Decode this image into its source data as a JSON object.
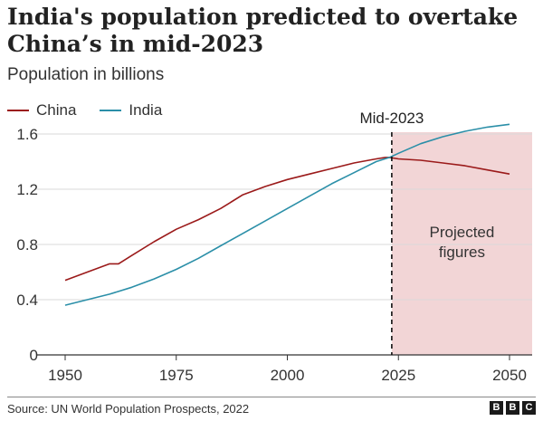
{
  "title": "India's population predicted to overtake China’s in mid-2023",
  "subtitle": "Population in billions",
  "source": "Source: UN World Population Prospects, 2022",
  "logo_letters": [
    "B",
    "B",
    "C"
  ],
  "colors": {
    "china": "#9b1a1a",
    "india": "#2b8fa8",
    "projection_bg": "#f2d5d6",
    "grid": "#d9d9d9"
  },
  "chart_data": {
    "type": "line",
    "xlim": [
      1950,
      2050
    ],
    "ylim": [
      0,
      1.6
    ],
    "x_ticks": [
      1950,
      1975,
      2000,
      2025,
      2050
    ],
    "y_ticks": [
      0,
      0.4,
      0.8,
      1.2,
      1.6
    ],
    "y_tick_labels": [
      "0",
      "0.4",
      "0.8",
      "1.2",
      "1.6"
    ],
    "grid": true,
    "legend_position": "top-left",
    "series": [
      {
        "name": "China",
        "color": "#9b1a1a",
        "x": [
          1950,
          1955,
          1960,
          1962,
          1965,
          1970,
          1975,
          1980,
          1985,
          1990,
          1995,
          2000,
          2005,
          2010,
          2015,
          2020,
          2022,
          2023,
          2025,
          2030,
          2035,
          2040,
          2045,
          2050
        ],
        "values": [
          0.54,
          0.6,
          0.66,
          0.66,
          0.72,
          0.82,
          0.91,
          0.98,
          1.06,
          1.16,
          1.22,
          1.27,
          1.31,
          1.35,
          1.39,
          1.42,
          1.43,
          1.43,
          1.42,
          1.41,
          1.39,
          1.37,
          1.34,
          1.31
        ]
      },
      {
        "name": "India",
        "color": "#2b8fa8",
        "x": [
          1950,
          1955,
          1960,
          1965,
          1970,
          1975,
          1980,
          1985,
          1990,
          1995,
          2000,
          2005,
          2010,
          2015,
          2020,
          2023,
          2025,
          2030,
          2035,
          2040,
          2045,
          2050
        ],
        "values": [
          0.36,
          0.4,
          0.44,
          0.49,
          0.55,
          0.62,
          0.7,
          0.79,
          0.88,
          0.97,
          1.06,
          1.15,
          1.24,
          1.32,
          1.4,
          1.43,
          1.46,
          1.53,
          1.58,
          1.62,
          1.65,
          1.67
        ]
      }
    ],
    "annotations": [
      {
        "label": "Mid-2023",
        "x": 2023.5
      },
      {
        "label": "Projected figures",
        "region": [
          2023.5,
          2055
        ]
      }
    ]
  }
}
